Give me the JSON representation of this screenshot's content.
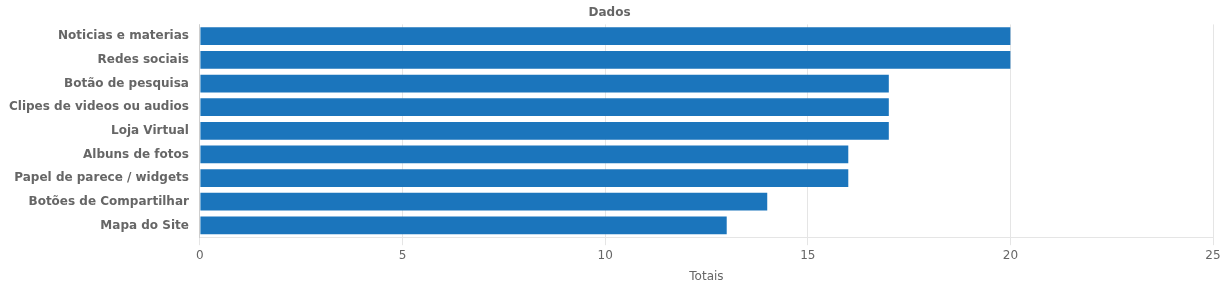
{
  "chart_data": {
    "type": "bar",
    "orientation": "horizontal",
    "title": "Dados",
    "categories": [
      "Mapa do Site",
      "Botões de Compartilhar",
      "Papel de parece / widgets",
      "Albuns de fotos",
      "Loja Virtual",
      "Clipes de videos ou audios",
      "Botão de pesquisa",
      "Redes sociais",
      "Noticias e materias"
    ],
    "values": [
      13,
      14,
      16,
      16,
      17,
      17,
      17,
      20,
      20
    ],
    "color": "#1B75BC",
    "xlabel": "Totais",
    "xlim": [
      0,
      25
    ],
    "xticks": [
      0,
      5,
      10,
      15,
      20,
      25
    ],
    "grid": true
  }
}
